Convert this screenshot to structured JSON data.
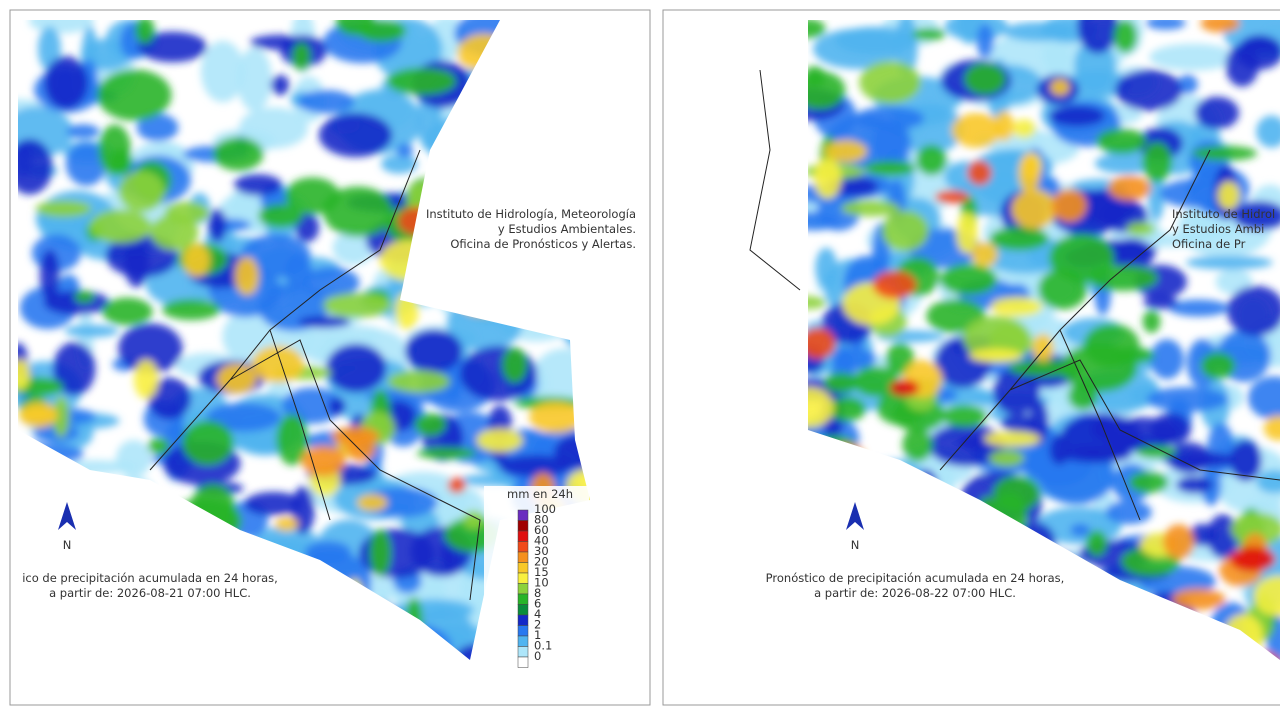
{
  "panels": [
    {
      "institution": [
        "Instituto de Hidrología, Meteorología",
        "y Estudios Ambientales.",
        "Oficina de Pronósticos y Alertas."
      ],
      "north": "N",
      "caption": [
        "ico de precipitación acumulada en 24 horas,",
        "a partir de: 2026-08-21 07:00 HLC."
      ],
      "legend": {
        "title": "mm en 24h",
        "items": [
          {
            "label": "100",
            "color": "#6a2cc0"
          },
          {
            "label": "80",
            "color": "#a00000"
          },
          {
            "label": "60",
            "color": "#e01010"
          },
          {
            "label": "40",
            "color": "#f04a1a"
          },
          {
            "label": "30",
            "color": "#f5901e"
          },
          {
            "label": "20",
            "color": "#f8c828"
          },
          {
            "label": "15",
            "color": "#f8f040"
          },
          {
            "label": "10",
            "color": "#8cd23c"
          },
          {
            "label": "8",
            "color": "#28b428"
          },
          {
            "label": "6",
            "color": "#0a8c3c"
          },
          {
            "label": "4",
            "color": "#1428c8"
          },
          {
            "label": "2",
            "color": "#2878f0"
          },
          {
            "label": "1",
            "color": "#50b4f0"
          },
          {
            "label": "0.1",
            "color": "#aee6fa"
          },
          {
            "label": "0",
            "color": "#ffffff"
          }
        ]
      }
    },
    {
      "institution": [
        "Instituto de Hidrol",
        "y Estudios Ambi",
        "Oficina de Pr"
      ],
      "north": "N",
      "caption": [
        "Pronóstico de precipitación acumulada en 24 horas,",
        "a partir de: 2026-08-22 07:00 HLC."
      ]
    }
  ]
}
